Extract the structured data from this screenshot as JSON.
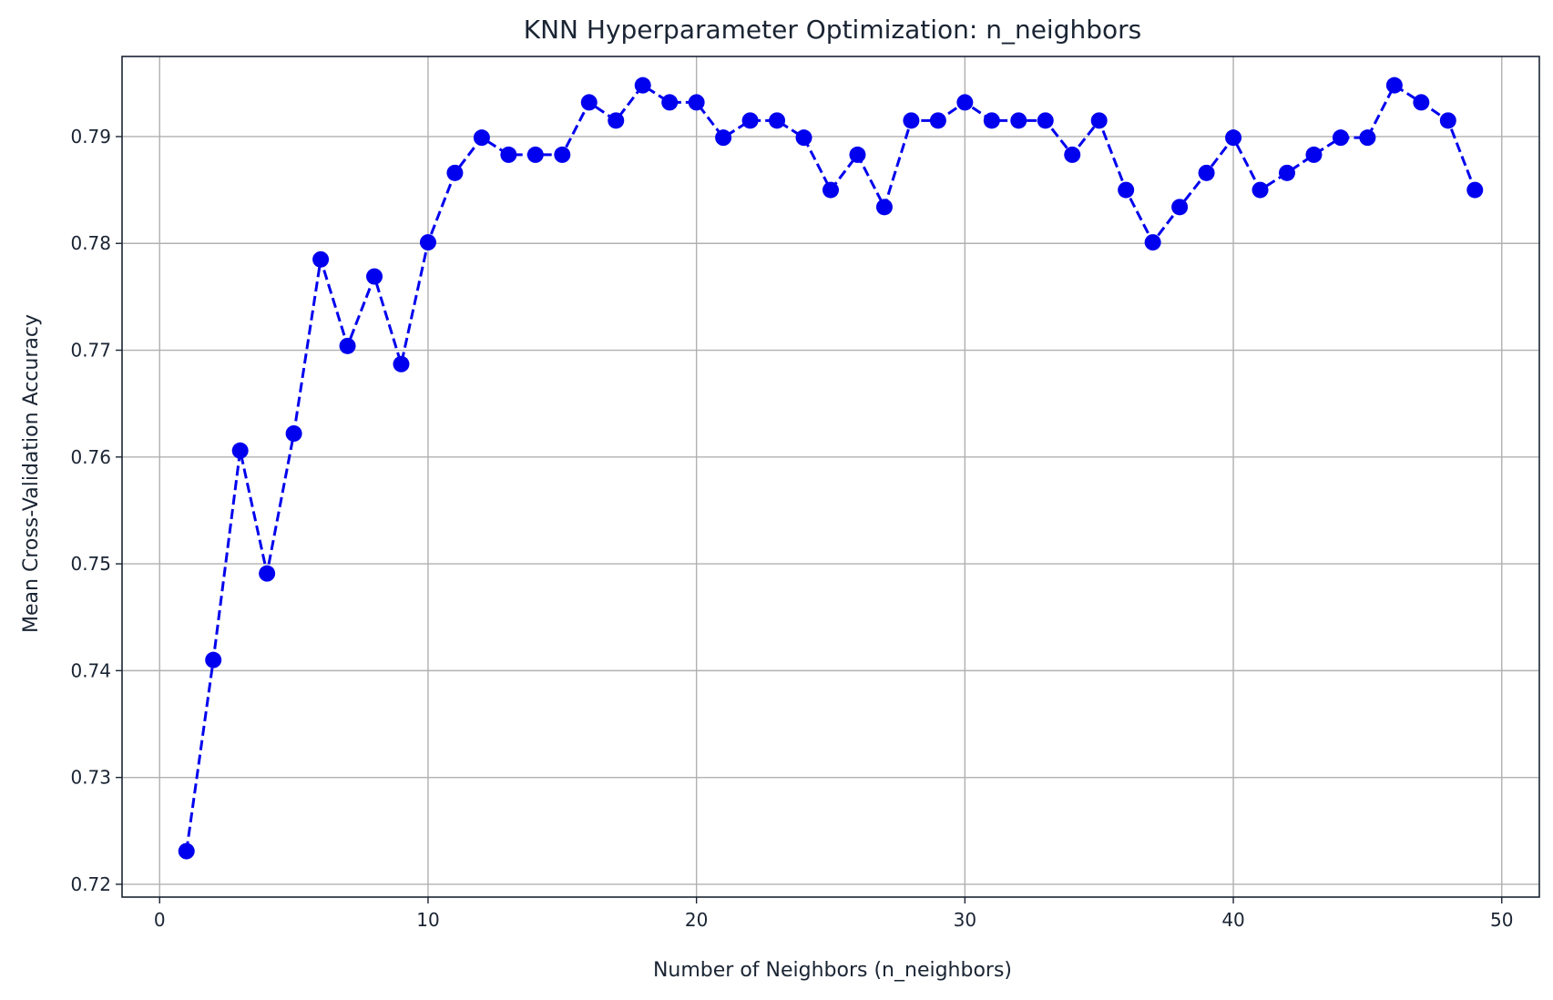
{
  "chart_data": {
    "type": "line",
    "title": "KNN Hyperparameter Optimization: n_neighbors",
    "xlabel": "Number of Neighbors (n_neighbors)",
    "ylabel": "Mean Cross-Validation Accuracy",
    "xlim": [
      -1.4,
      51.4
    ],
    "ylim": [
      0.7188,
      0.7975
    ],
    "xticks": [
      0,
      10,
      20,
      30,
      40,
      50
    ],
    "xtick_labels": [
      "0",
      "10",
      "20",
      "30",
      "40",
      "50"
    ],
    "yticks": [
      0.72,
      0.73,
      0.74,
      0.75,
      0.76,
      0.77,
      0.78,
      0.79
    ],
    "ytick_labels": [
      "0.72",
      "0.73",
      "0.74",
      "0.75",
      "0.76",
      "0.77",
      "0.78",
      "0.79"
    ],
    "grid": true,
    "line_style": "dashed",
    "marker": "circle",
    "color": "#0000ee",
    "x": [
      1,
      2,
      3,
      4,
      5,
      6,
      7,
      8,
      9,
      10,
      11,
      12,
      13,
      14,
      15,
      16,
      17,
      18,
      19,
      20,
      21,
      22,
      23,
      24,
      25,
      26,
      27,
      28,
      29,
      30,
      31,
      32,
      33,
      34,
      35,
      36,
      37,
      38,
      39,
      40,
      41,
      42,
      43,
      44,
      45,
      46,
      47,
      48,
      49
    ],
    "y": [
      0.7231,
      0.741,
      0.7606,
      0.7491,
      0.7622,
      0.7785,
      0.7704,
      0.7769,
      0.7687,
      0.7801,
      0.7866,
      0.7899,
      0.7883,
      0.7883,
      0.7883,
      0.7932,
      0.7915,
      0.7948,
      0.7932,
      0.7932,
      0.7899,
      0.7915,
      0.7915,
      0.7899,
      0.785,
      0.7883,
      0.7834,
      0.7915,
      0.7915,
      0.7932,
      0.7915,
      0.7915,
      0.7915,
      0.7883,
      0.7915,
      0.785,
      0.7801,
      0.7834,
      0.7866,
      0.7899,
      0.785,
      0.7866,
      0.7883,
      0.7899,
      0.7899,
      0.7948,
      0.7932,
      0.7915,
      0.785
    ]
  }
}
